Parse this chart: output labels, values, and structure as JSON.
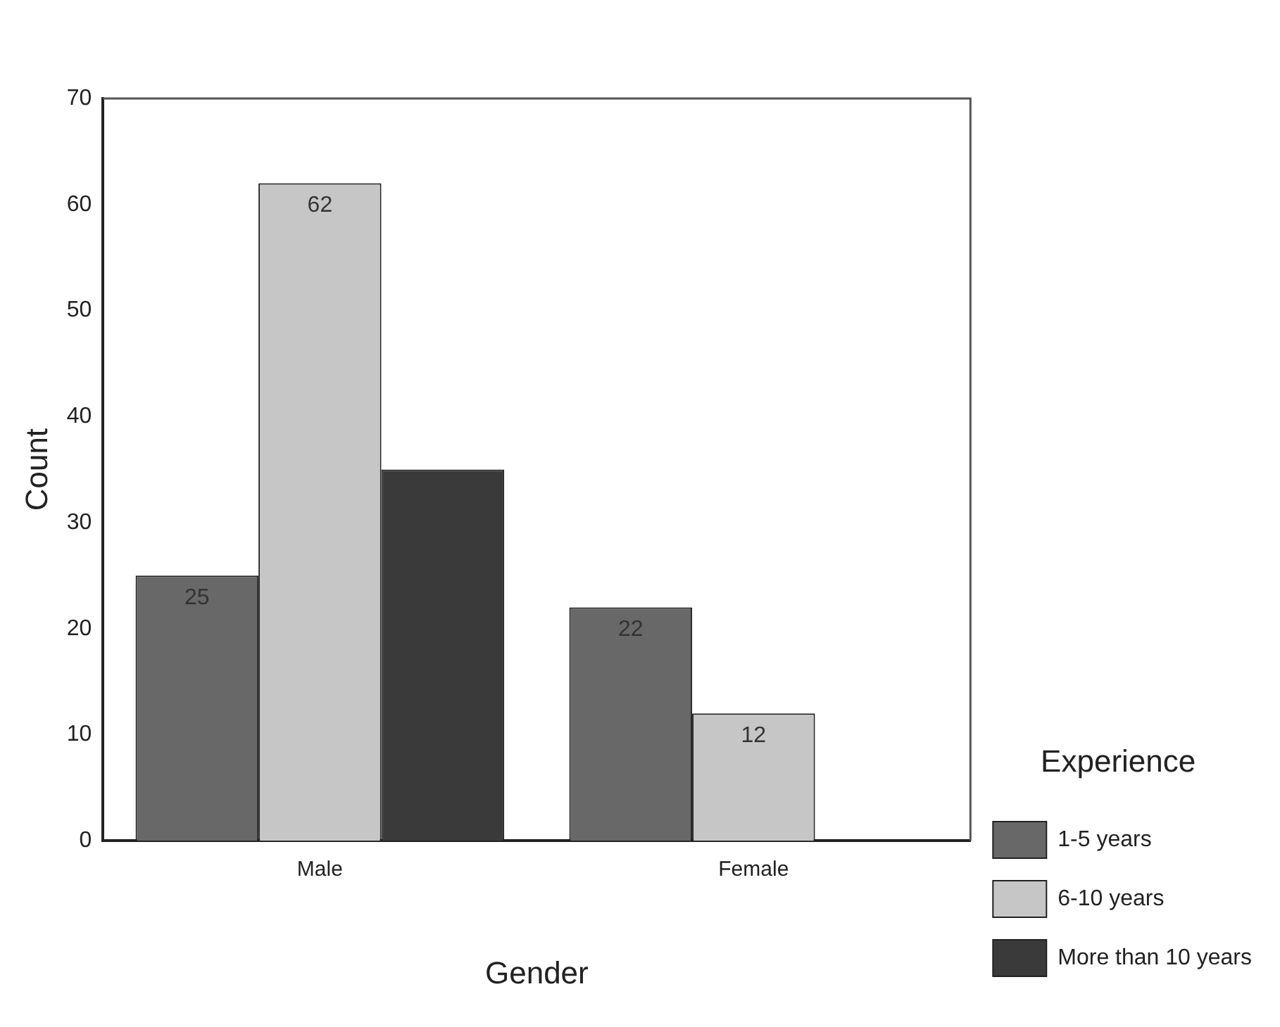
{
  "chart_data": {
    "type": "bar",
    "xlabel": "Gender",
    "ylabel": "Count",
    "legend_title": "Experience",
    "categories": [
      "Male",
      "Female"
    ],
    "series": [
      {
        "name": "1-5 years",
        "color": "#686868",
        "values": [
          25,
          22
        ],
        "value_labels": [
          "25",
          "22"
        ]
      },
      {
        "name": "6-10 years",
        "color": "#c6c6c6",
        "values": [
          62,
          12
        ],
        "value_labels": [
          "62",
          "12"
        ]
      },
      {
        "name": "More than 10 years",
        "color": "#3a3a3a",
        "values": [
          35,
          null
        ],
        "value_labels": [
          null,
          null
        ]
      }
    ],
    "ylim": [
      0,
      70
    ],
    "yticks": [
      0,
      10,
      20,
      30,
      40,
      50,
      60,
      70
    ],
    "grid": false,
    "legend": "right"
  }
}
